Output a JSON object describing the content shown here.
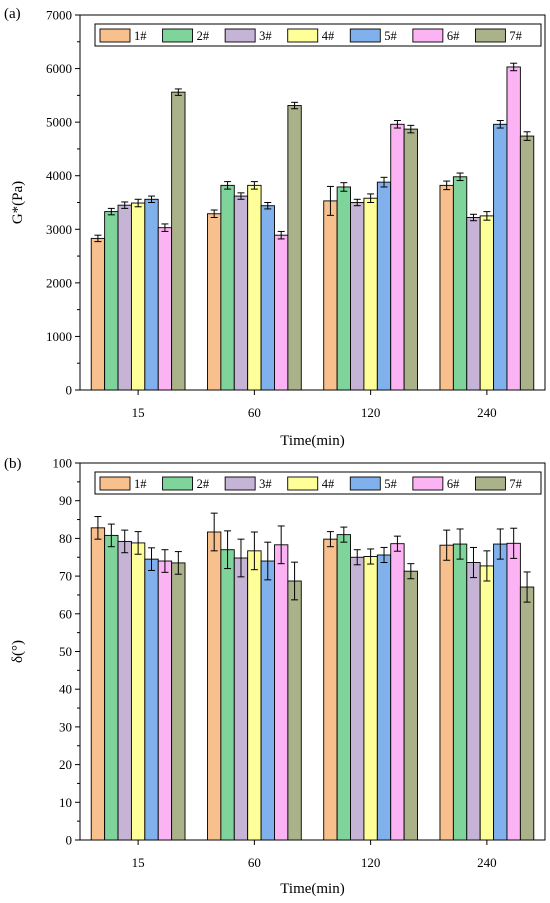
{
  "chart_data": [
    {
      "type": "bar",
      "panel_label": "(a)",
      "xlabel": "Time(min)",
      "ylabel": "G*(Pa)",
      "categories": [
        "15",
        "60",
        "120",
        "240"
      ],
      "ylim": [
        0,
        7000
      ],
      "yticks": [
        0,
        1000,
        2000,
        3000,
        4000,
        5000,
        6000,
        7000
      ],
      "error_bars": true,
      "legend_position": "top",
      "series": [
        {
          "name": "1#",
          "color": "#f8c08c",
          "values": [
            2830,
            3290,
            3530,
            3820
          ],
          "errors": [
            60,
            70,
            270,
            80
          ]
        },
        {
          "name": "2#",
          "color": "#7ed49a",
          "values": [
            3330,
            3820,
            3790,
            3980
          ],
          "errors": [
            60,
            70,
            80,
            70
          ]
        },
        {
          "name": "3#",
          "color": "#c6b4d6",
          "values": [
            3450,
            3620,
            3500,
            3220
          ],
          "errors": [
            60,
            60,
            60,
            60
          ]
        },
        {
          "name": "4#",
          "color": "#ffff99",
          "values": [
            3490,
            3820,
            3580,
            3250
          ],
          "errors": [
            70,
            70,
            80,
            80
          ]
        },
        {
          "name": "5#",
          "color": "#80b1ec",
          "values": [
            3560,
            3440,
            3880,
            4960
          ],
          "errors": [
            60,
            60,
            90,
            70
          ]
        },
        {
          "name": "6#",
          "color": "#fcb3f4",
          "values": [
            3030,
            2890,
            4960,
            6030
          ],
          "errors": [
            70,
            70,
            70,
            70
          ]
        },
        {
          "name": "7#",
          "color": "#aab28a",
          "values": [
            5560,
            5310,
            4870,
            4740
          ],
          "errors": [
            60,
            60,
            70,
            80
          ]
        }
      ]
    },
    {
      "type": "bar",
      "panel_label": "(b)",
      "xlabel": "Time(min)",
      "ylabel": "δ(°)",
      "categories": [
        "15",
        "60",
        "120",
        "240"
      ],
      "ylim": [
        0,
        100
      ],
      "yticks": [
        0,
        10,
        20,
        30,
        40,
        50,
        60,
        70,
        80,
        90,
        100
      ],
      "error_bars": true,
      "legend_position": "top",
      "series": [
        {
          "name": "1#",
          "color": "#f8c08c",
          "values": [
            82.8,
            81.7,
            79.8,
            78.2
          ],
          "errors": [
            3.0,
            5.0,
            2.0,
            4.0
          ]
        },
        {
          "name": "2#",
          "color": "#7ed49a",
          "values": [
            80.8,
            77.0,
            81.0,
            78.5
          ],
          "errors": [
            3.0,
            5.0,
            2.0,
            4.0
          ]
        },
        {
          "name": "3#",
          "color": "#c6b4d6",
          "values": [
            79.2,
            74.8,
            75.0,
            73.6
          ],
          "errors": [
            3.0,
            5.0,
            2.0,
            4.0
          ]
        },
        {
          "name": "4#",
          "color": "#ffff99",
          "values": [
            78.8,
            76.7,
            75.2,
            72.7
          ],
          "errors": [
            3.0,
            5.0,
            2.0,
            4.0
          ]
        },
        {
          "name": "5#",
          "color": "#80b1ec",
          "values": [
            74.5,
            74.0,
            75.6,
            78.5
          ],
          "errors": [
            3.0,
            5.0,
            2.0,
            4.0
          ]
        },
        {
          "name": "6#",
          "color": "#fcb3f4",
          "values": [
            74.0,
            78.3,
            78.6,
            78.7
          ],
          "errors": [
            3.0,
            5.0,
            2.0,
            4.0
          ]
        },
        {
          "name": "7#",
          "color": "#aab28a",
          "values": [
            73.5,
            68.7,
            71.3,
            67.1
          ],
          "errors": [
            3.0,
            5.0,
            2.0,
            4.0
          ]
        }
      ]
    }
  ]
}
